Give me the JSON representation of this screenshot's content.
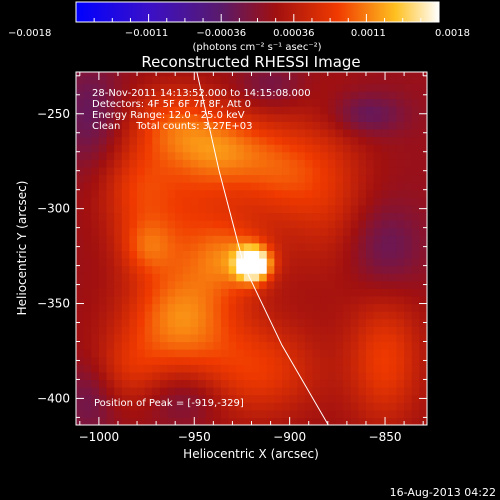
{
  "chart_data": {
    "type": "heatmap",
    "title": "Reconstructed RHESSI Image",
    "xlabel": "Heliocentric X (arcsec)",
    "ylabel": "Heliocentric Y (arcsec)",
    "xlim": [
      -1012,
      -828
    ],
    "ylim": [
      -414,
      -228
    ],
    "xticks": [
      -1000,
      -950,
      -900,
      -850
    ],
    "xtick_labels": [
      "−1000",
      "−950",
      "−900",
      "−850"
    ],
    "yticks": [
      -250,
      -300,
      -350,
      -400
    ],
    "ytick_labels": [
      "−250",
      "−300",
      "−350",
      "−400"
    ],
    "colorbar": {
      "min": -0.0018,
      "max": 0.0018,
      "colormap": "blue-purple-red-orange-yellow-white",
      "ticks": [
        -0.0018,
        -0.0011,
        -0.00036,
        0.00036,
        0.0011,
        0.0018
      ],
      "tick_labels": [
        "−0.0018",
        "−0.0011",
        "−0.00036",
        "0.00036",
        "0.0011",
        "0.0018"
      ],
      "unit_label": "(photons cm⁻² s⁻¹ asec⁻²)"
    },
    "annotations": [
      "28-Nov-2011 14:13:52.000 to 14:15:08.000",
      "Detectors: 4F 5F 6F 7F 8F, Att 0",
      "Energy Range: 12.0 - 25.0 keV",
      "Clean     Total counts: 3.27E+03"
    ],
    "peak_label": "Position of Peak = [-919,-329]",
    "peak": {
      "x": -919,
      "y": -329
    },
    "limb": [
      {
        "x": -950,
        "y": -222
      },
      {
        "x": -937,
        "y": -280
      },
      {
        "x": -924,
        "y": -330
      },
      {
        "x": -904,
        "y": -372
      },
      {
        "x": -878,
        "y": -417
      }
    ],
    "sources": [
      {
        "x": -919,
        "y": -329,
        "sx": 6,
        "sy": 6,
        "amp": 0.0019
      },
      {
        "x": -928,
        "y": -326,
        "sx": 14,
        "sy": 12,
        "amp": 0.00055
      },
      {
        "x": -950,
        "y": -320,
        "sx": 22,
        "sy": 40,
        "amp": 0.0006
      },
      {
        "x": -935,
        "y": -268,
        "sx": 18,
        "sy": 14,
        "amp": 0.0007
      },
      {
        "x": -962,
        "y": -255,
        "sx": 16,
        "sy": 14,
        "amp": 0.00055
      },
      {
        "x": -980,
        "y": -290,
        "sx": 14,
        "sy": 18,
        "amp": 0.0005
      },
      {
        "x": -905,
        "y": -280,
        "sx": 16,
        "sy": 18,
        "amp": 0.00055
      },
      {
        "x": -880,
        "y": -290,
        "sx": 16,
        "sy": 30,
        "amp": 0.00045
      },
      {
        "x": -960,
        "y": -360,
        "sx": 20,
        "sy": 18,
        "amp": 0.00065
      },
      {
        "x": -915,
        "y": -385,
        "sx": 22,
        "sy": 18,
        "amp": 0.0006
      },
      {
        "x": -850,
        "y": -380,
        "sx": 14,
        "sy": 24,
        "amp": 0.00065
      },
      {
        "x": -985,
        "y": -385,
        "sx": 14,
        "sy": 14,
        "amp": 0.0004
      },
      {
        "x": -975,
        "y": -320,
        "sx": 10,
        "sy": 10,
        "amp": 0.00045
      },
      {
        "x": -860,
        "y": -250,
        "sx": 14,
        "sy": 8,
        "amp": -0.00045
      },
      {
        "x": -1005,
        "y": -250,
        "sx": 12,
        "sy": 20,
        "amp": -0.0004
      },
      {
        "x": -850,
        "y": -320,
        "sx": 14,
        "sy": 16,
        "amp": -0.0004
      },
      {
        "x": -955,
        "y": -400,
        "sx": 14,
        "sy": 10,
        "amp": -0.00035
      },
      {
        "x": -1005,
        "y": -400,
        "sx": 10,
        "sy": 14,
        "amp": -0.00035
      },
      {
        "x": -910,
        "y": -235,
        "sx": 12,
        "sy": 8,
        "amp": -0.0003
      }
    ],
    "background": 0.00012
  },
  "timestamp": "16-Aug-2013 04:22"
}
